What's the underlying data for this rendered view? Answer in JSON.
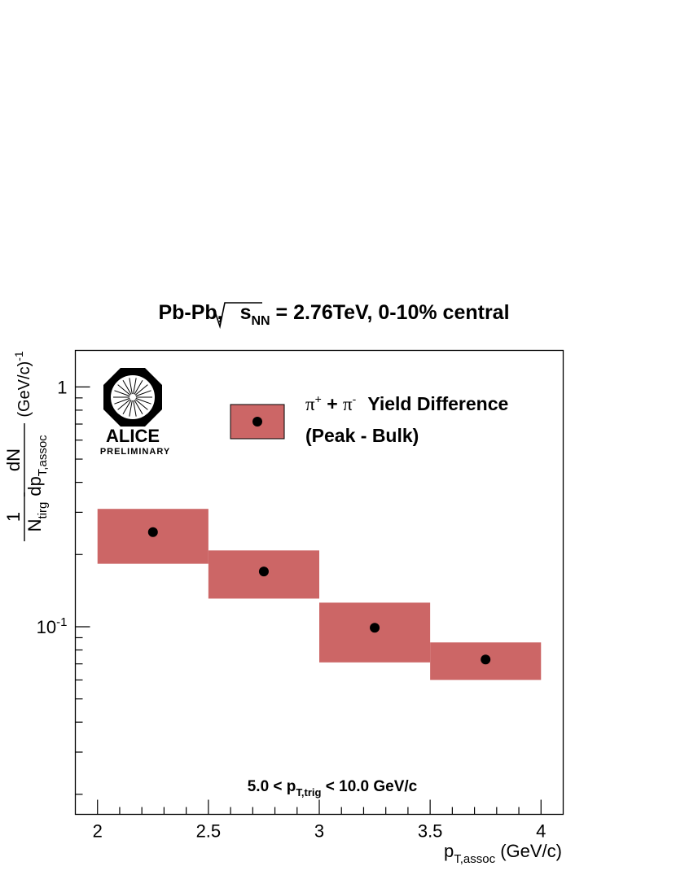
{
  "chart_data": {
    "type": "scatter",
    "title": {
      "prefix": "Pb-Pb, ",
      "sqrt_s": "s",
      "sqrt_sub": "NN",
      "suffix": " = 2.76TeV, 0-10% central"
    },
    "xlabel": {
      "main": "p",
      "sub": "T,assoc",
      "unit": " (GeV/c)"
    },
    "ylabel": {
      "num_top": "1",
      "den_main": "N",
      "den_sub": "tirg",
      "frac2_num": "dN",
      "frac2_den_main": "dp",
      "frac2_den_sub": "T,assoc",
      "unit": "(GeV/c)",
      "unit_exp": "-1"
    },
    "xlim": [
      1.9,
      4.1
    ],
    "ylim": [
      0.0165,
      1.42
    ],
    "yscale": "log",
    "x_ticks": [
      "2",
      "2.5",
      "3",
      "3.5",
      "4"
    ],
    "x_tick_values": [
      2,
      2.5,
      3,
      3.5,
      4
    ],
    "y_ticks": [
      {
        "value": 1,
        "base": "1",
        "exp": ""
      },
      {
        "value": 0.1,
        "base": "10",
        "exp": "-1"
      }
    ],
    "series": [
      {
        "name": "Yield Difference",
        "x": [
          2.25,
          2.75,
          3.25,
          3.75
        ],
        "y": [
          0.248,
          0.17,
          0.099,
          0.073
        ],
        "x_bins": [
          [
            2.0,
            2.5
          ],
          [
            2.5,
            3.0
          ],
          [
            3.0,
            3.5
          ],
          [
            3.5,
            4.0
          ]
        ],
        "sys_low": [
          0.183,
          0.131,
          0.071,
          0.06
        ],
        "sys_high": [
          0.31,
          0.208,
          0.126,
          0.086
        ]
      }
    ],
    "legend": {
      "placement": "top-right",
      "particle": "π",
      "plus_sup": "+",
      "joiner": " + ",
      "minus_sup": "-",
      "line1": "Yield Difference",
      "line2": "(Peak - Bulk)"
    },
    "annotation": {
      "prefix": "5.0 < p",
      "sub": "T,trig",
      "suffix": " < 10.0 GeV/c"
    },
    "logo": {
      "name": "ALICE",
      "subtitle": "PRELIMINARY"
    },
    "colors": {
      "box_fill": "#cc6666",
      "marker": "#000000",
      "axis": "#000000"
    }
  }
}
